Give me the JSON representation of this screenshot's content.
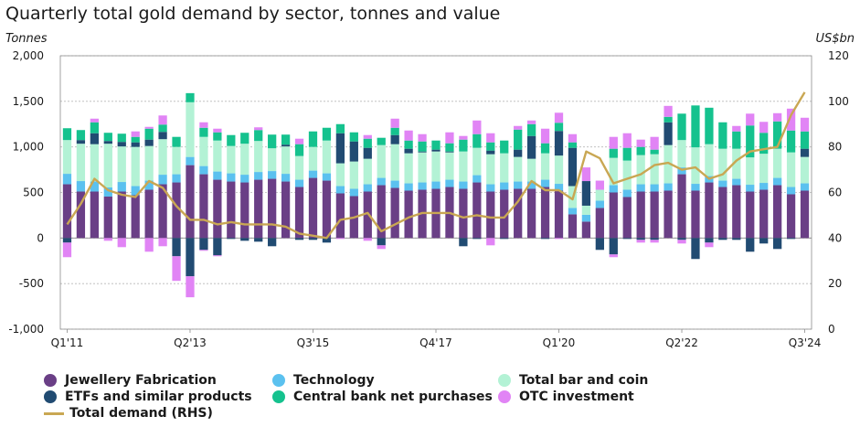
{
  "chart_data": {
    "type": "bar",
    "stacked": true,
    "title": "Quarterly total gold demand by sector, tonnes and value",
    "ylabel": "Tonnes",
    "y2label": "US$bn",
    "ylim": [
      -1000,
      2000
    ],
    "y2lim": [
      0,
      120
    ],
    "yticks": [
      "-1,000",
      "-500",
      "0",
      "500",
      "1,000",
      "1,500",
      "2,000"
    ],
    "y2ticks": [
      "0",
      "20",
      "40",
      "60",
      "80",
      "100",
      "120"
    ],
    "xticks": [
      "Q1'11",
      "Q2'13",
      "Q3'15",
      "Q4'17",
      "Q1'20",
      "Q2'22",
      "Q3'24"
    ],
    "grid": true,
    "legend_position": "bottom",
    "categories": [
      "Q1'11",
      "Q2'11",
      "Q3'11",
      "Q4'11",
      "Q1'12",
      "Q2'12",
      "Q3'12",
      "Q4'12",
      "Q1'13",
      "Q2'13",
      "Q3'13",
      "Q4'13",
      "Q1'14",
      "Q2'14",
      "Q3'14",
      "Q4'14",
      "Q1'15",
      "Q2'15",
      "Q3'15",
      "Q4'15",
      "Q1'16",
      "Q2'16",
      "Q3'16",
      "Q4'16",
      "Q1'17",
      "Q2'17",
      "Q3'17",
      "Q4'17",
      "Q1'18",
      "Q2'18",
      "Q3'18",
      "Q4'18",
      "Q1'19",
      "Q2'19",
      "Q3'19",
      "Q4'19",
      "Q1'20",
      "Q2'20",
      "Q3'20",
      "Q4'20",
      "Q1'21",
      "Q2'21",
      "Q3'21",
      "Q4'21",
      "Q1'22",
      "Q2'22",
      "Q3'22",
      "Q4'22",
      "Q1'23",
      "Q2'23",
      "Q3'23",
      "Q4'23",
      "Q1'24",
      "Q2'24",
      "Q3'24"
    ],
    "series": [
      {
        "name": "Jewellery Fabrication",
        "color": "#6a3f86",
        "values": [
          590,
          510,
          510,
          455,
          510,
          470,
          530,
          590,
          610,
          800,
          700,
          640,
          620,
          610,
          640,
          650,
          620,
          560,
          660,
          630,
          490,
          460,
          510,
          580,
          550,
          520,
          530,
          540,
          560,
          540,
          610,
          510,
          530,
          540,
          540,
          560,
          520,
          260,
          180,
          330,
          500,
          450,
          510,
          510,
          520,
          700,
          520,
          610,
          560,
          580,
          510,
          530,
          580,
          480,
          520
        ]
      },
      {
        "name": "Technology",
        "color": "#5bc1ef",
        "values": [
          115,
          115,
          110,
          100,
          105,
          100,
          100,
          105,
          90,
          90,
          90,
          90,
          90,
          85,
          85,
          85,
          85,
          80,
          80,
          80,
          80,
          80,
          80,
          80,
          80,
          80,
          80,
          80,
          80,
          80,
          80,
          80,
          80,
          80,
          80,
          80,
          75,
          70,
          75,
          80,
          80,
          80,
          80,
          80,
          80,
          75,
          75,
          70,
          70,
          70,
          75,
          75,
          80,
          80,
          80
        ]
      },
      {
        "name": "Total bar and coin",
        "color": "#b3f2d5",
        "values": [
          370,
          410,
          410,
          480,
          390,
          430,
          380,
          390,
          300,
          600,
          320,
          340,
          300,
          340,
          340,
          250,
          300,
          260,
          260,
          360,
          250,
          300,
          280,
          360,
          400,
          330,
          330,
          330,
          300,
          330,
          300,
          330,
          320,
          270,
          250,
          290,
          310,
          240,
          100,
          120,
          300,
          320,
          320,
          330,
          420,
          300,
          400,
          350,
          350,
          330,
          300,
          320,
          320,
          380,
          290
        ]
      },
      {
        "name": "ETFs and similar products",
        "color": "#214b72",
        "values": [
          -50,
          40,
          120,
          30,
          50,
          50,
          70,
          80,
          -200,
          -420,
          -130,
          -190,
          -10,
          -30,
          -40,
          -90,
          20,
          -20,
          -20,
          -50,
          330,
          220,
          120,
          -80,
          100,
          50,
          10,
          20,
          10,
          -90,
          -10,
          40,
          -10,
          80,
          250,
          -10,
          270,
          420,
          270,
          -130,
          -180,
          -10,
          -20,
          -20,
          250,
          -20,
          -230,
          -50,
          -20,
          -20,
          -150,
          -60,
          -120,
          -10,
          90
        ]
      },
      {
        "name": "Central bank net purchases",
        "color": "#15c28e",
        "values": [
          130,
          110,
          120,
          90,
          90,
          60,
          120,
          80,
          110,
          100,
          100,
          90,
          120,
          120,
          120,
          150,
          110,
          130,
          170,
          140,
          100,
          100,
          100,
          80,
          80,
          90,
          110,
          100,
          90,
          130,
          150,
          90,
          140,
          220,
          130,
          110,
          90,
          60,
          0,
          0,
          100,
          140,
          90,
          50,
          60,
          290,
          460,
          400,
          290,
          190,
          350,
          230,
          300,
          240,
          190
        ]
      },
      {
        "name": "OTC investment",
        "color": "#e184f5",
        "values": [
          -160,
          0,
          0,
          0,
          0,
          0,
          0,
          0,
          0,
          -230,
          0,
          0,
          0,
          0,
          0,
          0,
          0,
          0,
          0,
          0,
          0,
          0,
          0,
          0,
          0,
          0,
          0,
          0,
          0,
          0,
          0,
          0,
          0,
          0,
          0,
          0,
          0,
          0,
          0,
          0,
          0,
          0,
          0,
          0,
          0,
          0,
          0,
          0,
          0,
          0,
          0,
          0,
          0,
          0,
          0
        ]
      },
      {
        "name": "Total demand (RHS)",
        "color": "#c9a753",
        "axis": "right",
        "values": [
          46,
          55,
          66,
          61,
          59,
          58,
          65,
          62,
          54,
          48,
          48,
          46,
          47,
          46,
          46,
          46,
          45,
          42,
          41,
          40,
          48,
          49,
          51,
          43,
          46,
          49,
          51,
          51,
          51,
          49,
          50,
          49,
          49,
          56,
          65,
          61,
          61,
          57,
          78,
          75,
          64,
          66,
          68,
          72,
          73,
          70,
          71,
          66,
          68,
          74,
          78,
          79,
          80,
          94,
          104
        ]
      }
    ],
    "otc_extra": [
      {
        "index": 0,
        "pos": 0,
        "neg": -160
      },
      {
        "index": 2,
        "pos": 40,
        "neg": 0
      },
      {
        "index": 3,
        "pos": 0,
        "neg": -30
      },
      {
        "index": 4,
        "pos": 0,
        "neg": -100
      },
      {
        "index": 5,
        "pos": 60,
        "neg": 0
      },
      {
        "index": 6,
        "pos": 20,
        "neg": -150
      },
      {
        "index": 7,
        "pos": 100,
        "neg": -90
      },
      {
        "index": 8,
        "pos": 0,
        "neg": -270
      },
      {
        "index": 9,
        "pos": 0,
        "neg": -230
      },
      {
        "index": 10,
        "pos": 60,
        "neg": -10
      },
      {
        "index": 11,
        "pos": 40,
        "neg": -10
      },
      {
        "index": 14,
        "pos": 30,
        "neg": 0
      },
      {
        "index": 17,
        "pos": 60,
        "neg": 0
      },
      {
        "index": 20,
        "pos": 0,
        "neg": -10
      },
      {
        "index": 22,
        "pos": 40,
        "neg": -30
      },
      {
        "index": 23,
        "pos": 0,
        "neg": -40
      },
      {
        "index": 24,
        "pos": 100,
        "neg": 0
      },
      {
        "index": 25,
        "pos": 110,
        "neg": 0
      },
      {
        "index": 26,
        "pos": 80,
        "neg": 0
      },
      {
        "index": 28,
        "pos": 120,
        "neg": 0
      },
      {
        "index": 29,
        "pos": 40,
        "neg": 0
      },
      {
        "index": 30,
        "pos": 150,
        "neg": 0
      },
      {
        "index": 31,
        "pos": 100,
        "neg": -80
      },
      {
        "index": 33,
        "pos": 40,
        "neg": 0
      },
      {
        "index": 34,
        "pos": 40,
        "neg": 0
      },
      {
        "index": 35,
        "pos": 160,
        "neg": 0
      },
      {
        "index": 36,
        "pos": 110,
        "neg": -10
      },
      {
        "index": 37,
        "pos": 90,
        "neg": 0
      },
      {
        "index": 38,
        "pos": 150,
        "neg": 0
      },
      {
        "index": 39,
        "pos": 100,
        "neg": 0
      },
      {
        "index": 40,
        "pos": 130,
        "neg": -30
      },
      {
        "index": 41,
        "pos": 160,
        "neg": 0
      },
      {
        "index": 42,
        "pos": 80,
        "neg": -30
      },
      {
        "index": 43,
        "pos": 140,
        "neg": -30
      },
      {
        "index": 44,
        "pos": 120,
        "neg": 0
      },
      {
        "index": 45,
        "pos": 0,
        "neg": -40
      },
      {
        "index": 47,
        "pos": 0,
        "neg": -50
      },
      {
        "index": 49,
        "pos": 60,
        "neg": 0
      },
      {
        "index": 50,
        "pos": 130,
        "neg": 0
      },
      {
        "index": 51,
        "pos": 120,
        "neg": 0
      },
      {
        "index": 52,
        "pos": 90,
        "neg": 0
      },
      {
        "index": 53,
        "pos": 240,
        "neg": 0
      },
      {
        "index": 54,
        "pos": 150,
        "neg": 0
      }
    ]
  },
  "legend": [
    {
      "label": "Jewellery Fabrication",
      "color": "#6a3f86",
      "kind": "dot"
    },
    {
      "label": "Technology",
      "color": "#5bc1ef",
      "kind": "dot"
    },
    {
      "label": "Total bar and coin",
      "color": "#b3f2d5",
      "kind": "dot"
    },
    {
      "label": "ETFs and similar products",
      "color": "#214b72",
      "kind": "dot"
    },
    {
      "label": "Central bank net purchases",
      "color": "#15c28e",
      "kind": "dot"
    },
    {
      "label": "OTC investment",
      "color": "#e184f5",
      "kind": "dot"
    },
    {
      "label": "Total demand (RHS)",
      "color": "#c9a753",
      "kind": "line"
    }
  ]
}
